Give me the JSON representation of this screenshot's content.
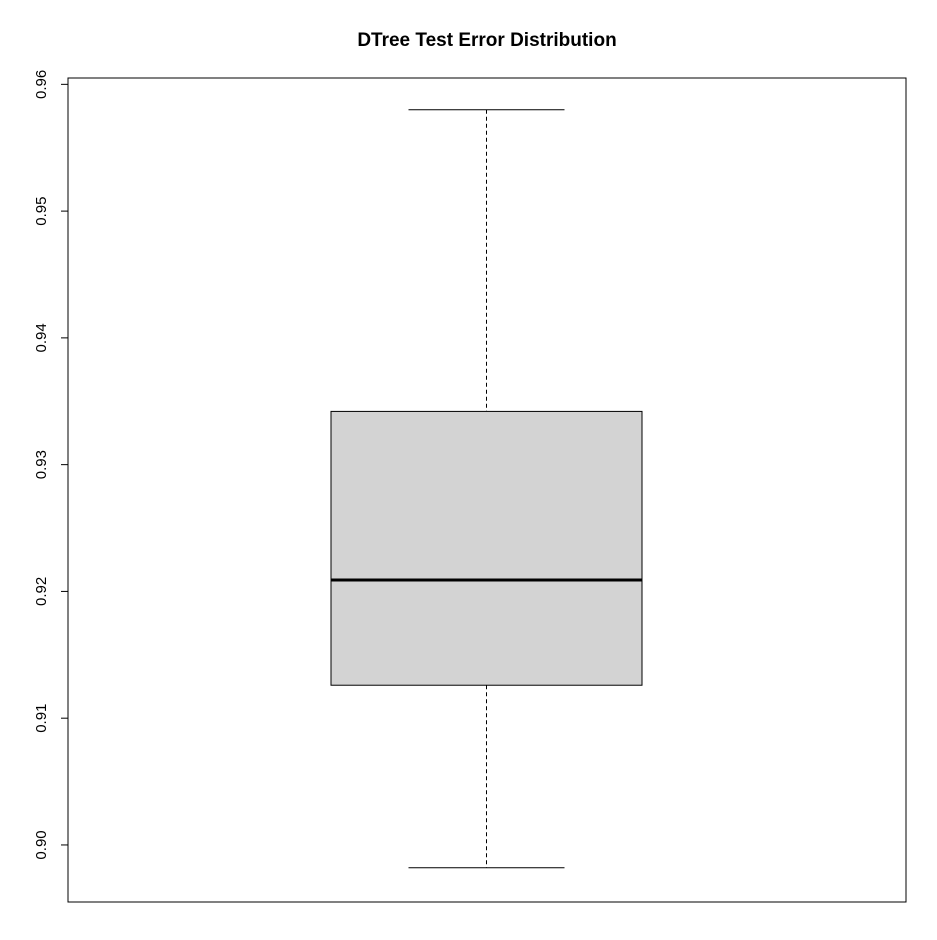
{
  "chart_data": {
    "type": "boxplot",
    "title": "DTree Test Error Distribution",
    "xlabel": "",
    "ylabel": "",
    "ylim": [
      0.8955,
      0.9605
    ],
    "y_ticks": [
      0.9,
      0.91,
      0.92,
      0.93,
      0.94,
      0.95,
      0.96
    ],
    "y_tick_labels": [
      "0.90",
      "0.91",
      "0.92",
      "0.93",
      "0.94",
      "0.95",
      "0.96"
    ],
    "boxes": [
      {
        "whisker_low": 0.8982,
        "q1": 0.9126,
        "median": 0.9209,
        "q3": 0.9342,
        "whisker_high": 0.958
      }
    ],
    "grid": false,
    "colors": {
      "box_fill": "#d3d3d3",
      "stroke": "#000000"
    }
  }
}
